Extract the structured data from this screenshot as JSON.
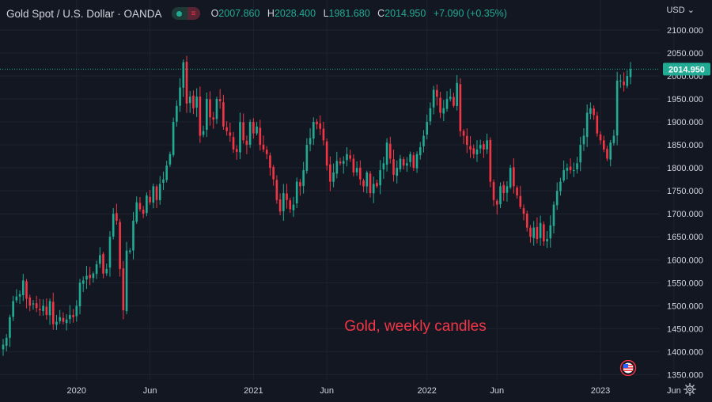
{
  "header": {
    "symbol": "Gold Spot / U.S. Dollar · OANDA",
    "open_key": "O",
    "open": "2007.860",
    "high_key": "H",
    "high": "2028.400",
    "low_key": "L",
    "low": "1981.680",
    "close_key": "C",
    "close": "2014.950",
    "change": "+7.090 (+0.35%)",
    "currency": "USD"
  },
  "colors": {
    "background": "#131722",
    "up": "#22ab94",
    "down": "#f23645",
    "text": "#d1d4dc",
    "grid": "#1f2330"
  },
  "icons": {
    "flag": "us-flag-icon",
    "settings": "gear-icon",
    "currency_menu": "chevron-down-icon"
  },
  "chart_data": {
    "type": "candlestick",
    "annotation": "Gold, weekly candles",
    "last_price_label": "2014.950",
    "ylim": [
      1320,
      2120
    ],
    "yticks": [
      "2100.000",
      "2050.000",
      "2000.000",
      "1950.000",
      "1900.000",
      "1850.000",
      "1800.000",
      "1750.000",
      "1700.000",
      "1650.000",
      "1600.000",
      "1550.000",
      "1500.000",
      "1450.000",
      "1400.000",
      "1350.000"
    ],
    "ytick_values": [
      2100,
      2050,
      2000,
      1950,
      1900,
      1850,
      1800,
      1750,
      1700,
      1650,
      1600,
      1550,
      1500,
      1450,
      1400,
      1350
    ],
    "xticks": [
      {
        "label": "2020",
        "index": 22
      },
      {
        "label": "Jun",
        "index": 44
      },
      {
        "label": "2021",
        "index": 75
      },
      {
        "label": "Jun",
        "index": 97
      },
      {
        "label": "2022",
        "index": 127
      },
      {
        "label": "Jun",
        "index": 148
      },
      {
        "label": "2023",
        "index": 179
      },
      {
        "label": "Jun",
        "index": 201
      }
    ],
    "closes": [
      1415,
      1430,
      1475,
      1510,
      1520,
      1525,
      1555,
      1515,
      1500,
      1505,
      1495,
      1490,
      1500,
      1480,
      1510,
      1460,
      1465,
      1475,
      1465,
      1470,
      1480,
      1475,
      1500,
      1550,
      1555,
      1565,
      1560,
      1570,
      1590,
      1610,
      1570,
      1580,
      1650,
      1700,
      1685,
      1580,
      1490,
      1620,
      1620,
      1685,
      1725,
      1710,
      1700,
      1740,
      1725,
      1760,
      1730,
      1765,
      1775,
      1805,
      1830,
      1900,
      1935,
      1975,
      2030,
      1940,
      1955,
      1930,
      1955,
      1870,
      1880,
      1950,
      1910,
      1905,
      1950,
      1945,
      1890,
      1880,
      1870,
      1840,
      1835,
      1900,
      1860,
      1850,
      1900,
      1875,
      1890,
      1850,
      1840,
      1830,
      1800,
      1775,
      1730,
      1705,
      1745,
      1730,
      1710,
      1720,
      1770,
      1760,
      1795,
      1850,
      1865,
      1900,
      1895,
      1885,
      1860,
      1805,
      1770,
      1790,
      1815,
      1810,
      1815,
      1830,
      1820,
      1790,
      1800,
      1775,
      1760,
      1790,
      1745,
      1765,
      1760,
      1795,
      1810,
      1855,
      1820,
      1785,
      1800,
      1820,
      1805,
      1810,
      1830,
      1800,
      1830,
      1845,
      1870,
      1900,
      1930,
      1970,
      1955,
      1920,
      1930,
      1950,
      1955,
      1935,
      1985,
      1880,
      1870,
      1850,
      1840,
      1830,
      1840,
      1850,
      1840,
      1860,
      1770,
      1730,
      1720,
      1760,
      1745,
      1760,
      1800,
      1760,
      1740,
      1715,
      1700,
      1670,
      1650,
      1670,
      1645,
      1680,
      1640,
      1645,
      1675,
      1720,
      1750,
      1770,
      1795,
      1800,
      1795,
      1795,
      1810,
      1850,
      1870,
      1920,
      1930,
      1915,
      1875,
      1860,
      1840,
      1820,
      1855,
      1870,
      1990,
      1990,
      1980,
      2000,
      2015
    ]
  }
}
